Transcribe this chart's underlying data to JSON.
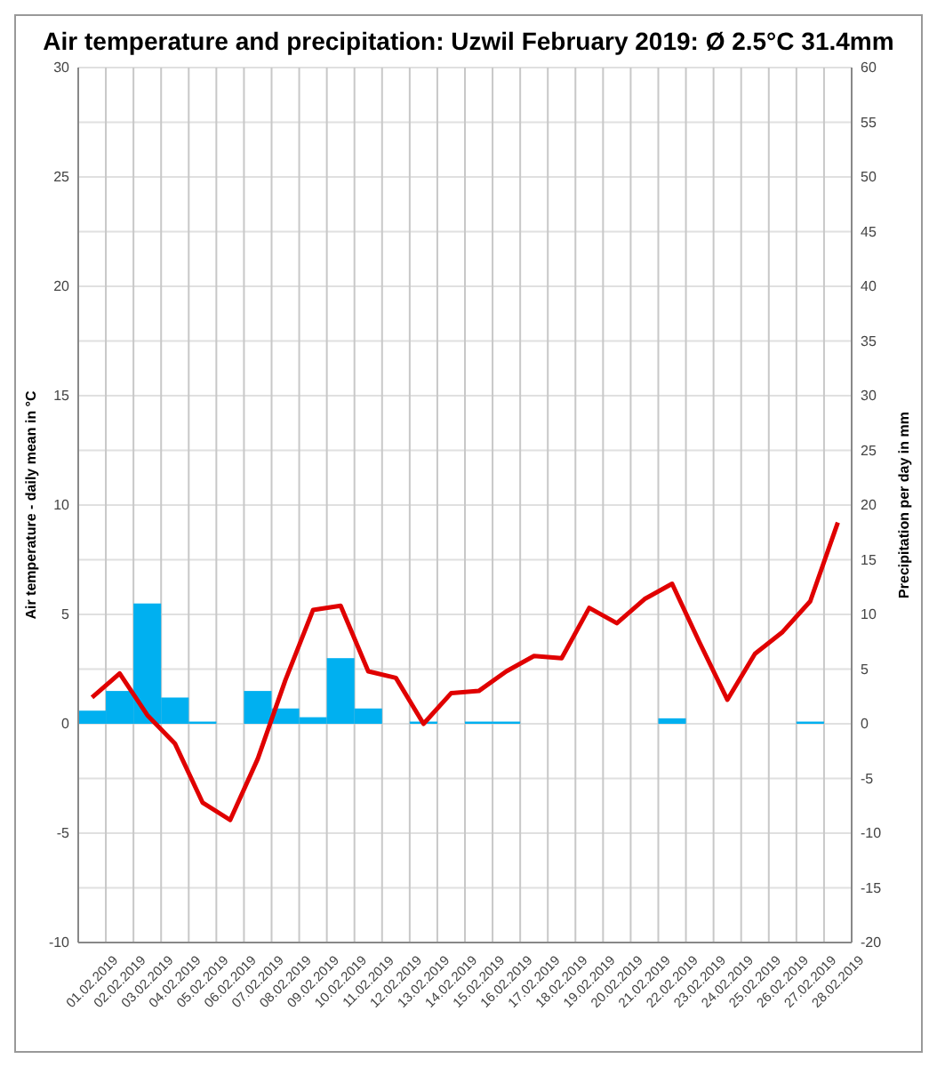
{
  "chart_data": {
    "type": "bar",
    "title": "Air temperature and precipitation: Uzwil February 2019: Ø 2.5°C 31.4mm",
    "ylabel": "Air temperature - daily mean in °C",
    "y2label": "Precipitation per day in mm",
    "categories": [
      "01.02.2019",
      "02.02.2019",
      "03.02.2019",
      "04.02.2019",
      "05.02.2019",
      "06.02.2019",
      "07.02.2019",
      "08.02.2019",
      "09.02.2019",
      "10.02.2019",
      "11.02.2019",
      "12.02.2019",
      "13.02.2019",
      "14.02.2019",
      "15.02.2019",
      "16.02.2019",
      "17.02.2019",
      "18.02.2019",
      "19.02.2019",
      "20.02.2019",
      "21.02.2019",
      "22.02.2019",
      "23.02.2019",
      "24.02.2019",
      "25.02.2019",
      "26.02.2019",
      "27.02.2019",
      "28.02.2019"
    ],
    "series": [
      {
        "axis": "y2",
        "color": "#00b0f0",
        "values": [
          1.2,
          3.0,
          11.0,
          2.4,
          0.2,
          0,
          3.0,
          1.4,
          0.6,
          6.0,
          1.4,
          0,
          0.2,
          0,
          0.2,
          0.2,
          0,
          0,
          0,
          0,
          0,
          0.5,
          0,
          0,
          0,
          0,
          0.2,
          0
        ]
      },
      {
        "type": "line",
        "axis": "y",
        "color": "#e00000",
        "values": [
          1.2,
          2.3,
          0.4,
          -0.9,
          -3.6,
          -4.4,
          -1.6,
          2.0,
          5.2,
          5.4,
          2.4,
          2.1,
          0.0,
          1.4,
          1.5,
          2.4,
          3.1,
          3.0,
          5.3,
          4.6,
          5.7,
          6.4,
          3.7,
          1.1,
          3.2,
          4.2,
          5.6,
          9.2
        ]
      }
    ],
    "ylim": [
      -10,
      30
    ],
    "yticks": [
      -10,
      -5,
      0,
      5,
      10,
      15,
      20,
      25,
      30
    ],
    "y2lim": [
      -20,
      60
    ],
    "y2ticks": [
      -20,
      -15,
      -10,
      -5,
      0,
      5,
      10,
      15,
      20,
      25,
      30,
      35,
      40,
      45,
      50,
      55,
      60
    ],
    "grid": true,
    "line_style": "solid",
    "marker": "none"
  }
}
